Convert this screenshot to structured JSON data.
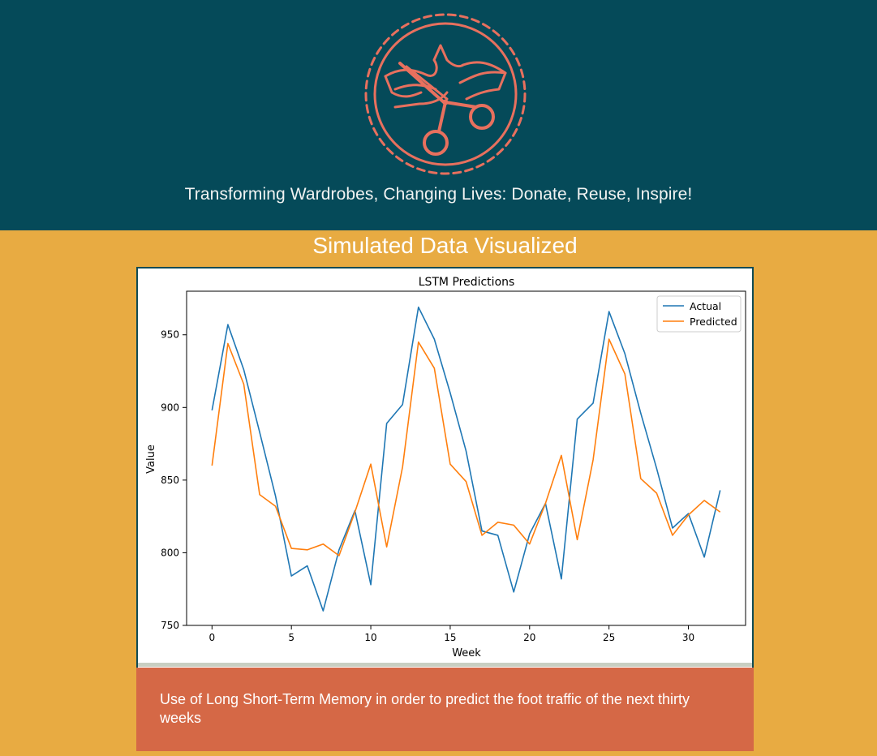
{
  "header": {
    "logo_icon": "scissors-cutting-ribbon-icon",
    "tagline": "Transforming Wardrobes, Changing Lives: Donate, Reuse, Inspire!"
  },
  "section": {
    "title": "Simulated Data Visualized"
  },
  "caption": "Use of Long Short-Term Memory in order to predict the foot traffic of the next thirty weeks",
  "colors": {
    "header_bg": "#054A59",
    "page_bg": "#E8AB42",
    "caption_bg": "#D56846",
    "logo": "#E8705E",
    "actual": "#1F77B4",
    "predicted": "#FF7F0E"
  },
  "chart_data": {
    "type": "line",
    "title": "LSTM Predictions",
    "xlabel": "Week",
    "ylabel": "Value",
    "xlim": [
      -1.6,
      33.6
    ],
    "ylim": [
      750,
      980
    ],
    "xticks": [
      0,
      5,
      10,
      15,
      20,
      25,
      30
    ],
    "yticks": [
      750,
      800,
      850,
      900,
      950
    ],
    "legend_position": "upper right",
    "grid": false,
    "x": [
      0,
      1,
      2,
      3,
      4,
      5,
      6,
      7,
      8,
      9,
      10,
      11,
      12,
      13,
      14,
      15,
      16,
      17,
      18,
      19,
      20,
      21,
      22,
      23,
      24,
      25,
      26,
      27,
      28,
      29,
      30,
      31,
      32
    ],
    "series": [
      {
        "name": "Actual",
        "color": "#1F77B4",
        "values": [
          898,
          957,
          926,
          883,
          839,
          784,
          791,
          760,
          802,
          829,
          778,
          889,
          902,
          969,
          947,
          910,
          870,
          815,
          812,
          773,
          813,
          834,
          782,
          892,
          903,
          966,
          937,
          896,
          858,
          817,
          827,
          797,
          843
        ]
      },
      {
        "name": "Predicted",
        "color": "#FF7F0E",
        "values": [
          860,
          944,
          916,
          840,
          832,
          803,
          802,
          806,
          798,
          828,
          861,
          804,
          859,
          945,
          927,
          861,
          849,
          812,
          821,
          819,
          806,
          834,
          867,
          809,
          864,
          947,
          923,
          851,
          841,
          812,
          826,
          836,
          828
        ]
      }
    ]
  }
}
